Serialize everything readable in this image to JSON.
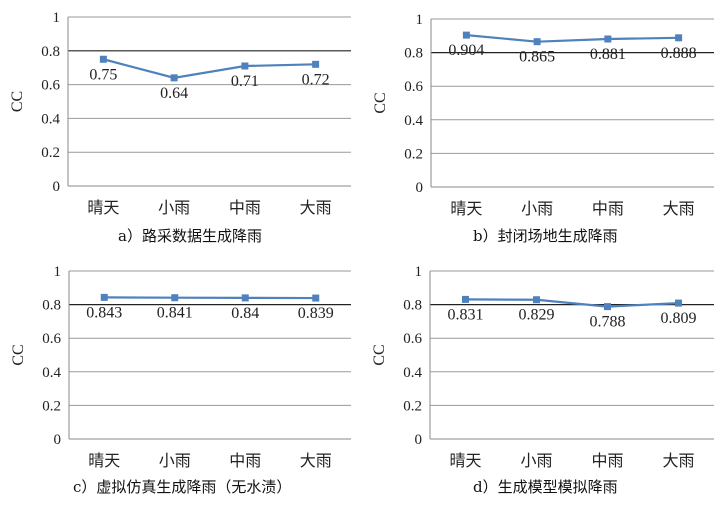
{
  "chart_data": [
    {
      "type": "line",
      "categories": [
        "晴天",
        "小雨",
        "中雨",
        "大雨"
      ],
      "values": [
        0.75,
        0.64,
        0.71,
        0.72
      ],
      "data_labels": [
        "0.75",
        "0.64",
        "0.71",
        "0.72"
      ],
      "ylabel": "CC",
      "ylim": [
        0,
        1
      ],
      "yticks": [
        "0",
        "0.2",
        "0.4",
        "0.6",
        "0.8",
        "1"
      ],
      "caption": "a）路采数据生成降雨",
      "grid": true,
      "color": "#4f81bd"
    },
    {
      "type": "line",
      "categories": [
        "晴天",
        "小雨",
        "中雨",
        "大雨"
      ],
      "values": [
        0.904,
        0.865,
        0.881,
        0.888
      ],
      "data_labels": [
        "0.904",
        "0.865",
        "0.881",
        "0.888"
      ],
      "ylabel": "CC",
      "ylim": [
        0,
        1
      ],
      "yticks": [
        "0",
        "0.2",
        "0.4",
        "0.6",
        "0.8",
        "1"
      ],
      "caption": "b）封闭场地生成降雨",
      "grid": true,
      "color": "#4f81bd"
    },
    {
      "type": "line",
      "categories": [
        "晴天",
        "小雨",
        "中雨",
        "大雨"
      ],
      "values": [
        0.843,
        0.841,
        0.84,
        0.839
      ],
      "data_labels": [
        "0.843",
        "0.841",
        "0.84",
        "0.839"
      ],
      "ylabel": "CC",
      "ylim": [
        0,
        1
      ],
      "yticks": [
        "0",
        "0.2",
        "0.4",
        "0.6",
        "0.8",
        "1"
      ],
      "caption": "c）虚拟仿真生成降雨（无水渍）",
      "grid": true,
      "color": "#4f81bd"
    },
    {
      "type": "line",
      "categories": [
        "晴天",
        "小雨",
        "中雨",
        "大雨"
      ],
      "values": [
        0.831,
        0.829,
        0.788,
        0.809
      ],
      "data_labels": [
        "0.831",
        "0.829",
        "0.788",
        "0.809"
      ],
      "ylabel": "CC",
      "ylim": [
        0,
        1
      ],
      "yticks": [
        "0",
        "0.2",
        "0.4",
        "0.6",
        "0.8",
        "1"
      ],
      "caption": "d）生成模型模拟降雨",
      "grid": true,
      "color": "#4f81bd"
    }
  ]
}
